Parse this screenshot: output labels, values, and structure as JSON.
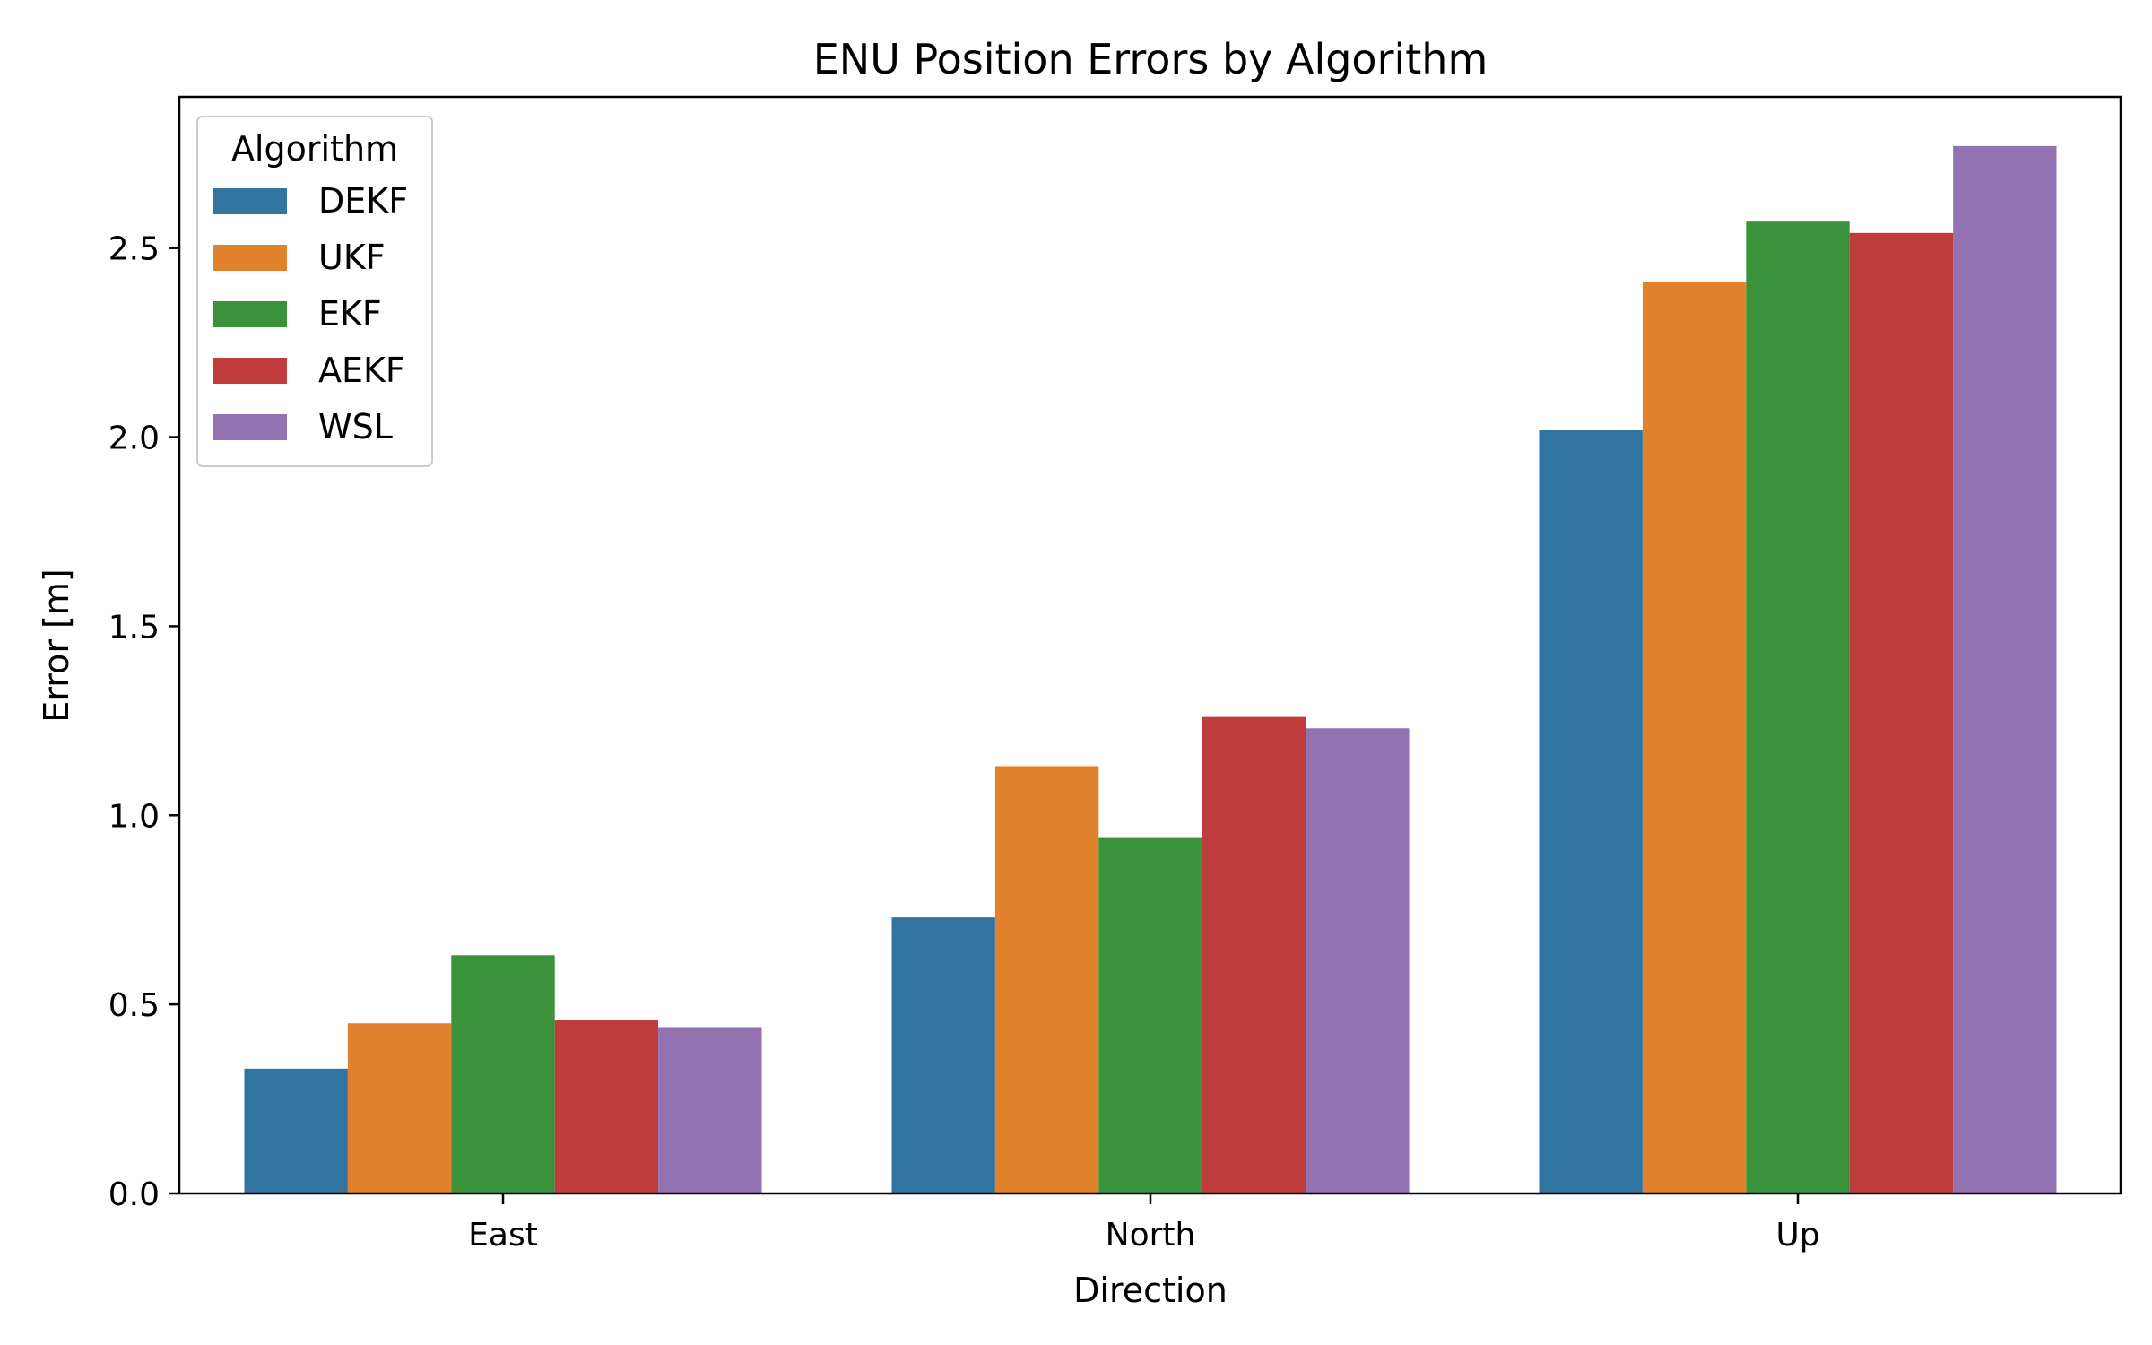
{
  "chart_data": {
    "type": "bar",
    "title": "ENU Position Errors by Algorithm",
    "xlabel": "Direction",
    "ylabel": "Error [m]",
    "categories": [
      "East",
      "North",
      "Up"
    ],
    "ylim": [
      0,
      2.9
    ],
    "yticks": [
      0.0,
      0.5,
      1.0,
      1.5,
      2.0,
      2.5
    ],
    "ytick_labels": [
      "0.0",
      "0.5",
      "1.0",
      "1.5",
      "2.0",
      "2.5"
    ],
    "grid": false,
    "legend": {
      "title": "Algorithm",
      "position": "top-left"
    },
    "series": [
      {
        "name": "DEKF",
        "color": "#3274a1",
        "values": [
          0.33,
          0.73,
          2.02
        ]
      },
      {
        "name": "UKF",
        "color": "#e1812c",
        "values": [
          0.45,
          1.13,
          2.41
        ]
      },
      {
        "name": "EKF",
        "color": "#3a923a",
        "values": [
          0.63,
          0.94,
          2.57
        ]
      },
      {
        "name": "AEKF",
        "color": "#c03d3e",
        "values": [
          0.46,
          1.26,
          2.54
        ]
      },
      {
        "name": "WSL",
        "color": "#9372b2",
        "values": [
          0.44,
          1.23,
          2.77
        ]
      }
    ]
  }
}
